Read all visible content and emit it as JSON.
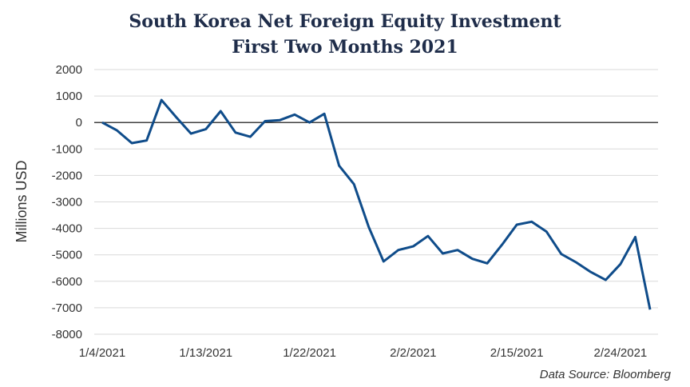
{
  "chart_data": {
    "type": "line",
    "title": "South Korea Net Foreign Equity Investment",
    "subtitle": "First Two Months 2021",
    "xlabel": "",
    "ylabel": "Millions USD",
    "ylim": [
      -8000,
      2000
    ],
    "yticks": [
      2000,
      1000,
      0,
      -1000,
      -2000,
      -3000,
      -4000,
      -5000,
      -6000,
      -7000,
      -8000
    ],
    "ytick_labels": [
      "2000",
      "1000",
      "0",
      "-1000",
      "-2000",
      "-3000",
      "-4000",
      "-5000",
      "-6000",
      "-7000",
      "-8000"
    ],
    "xtick_labels": [
      "1/4/2021",
      "1/13/2021",
      "1/22/2021",
      "2/2/2021",
      "2/15/2021",
      "2/24/2021"
    ],
    "grid": true,
    "legend": "none",
    "series": [
      {
        "color": "#0f4c8a",
        "x": [
          "2021-01-04",
          "2021-01-05",
          "2021-01-06",
          "2021-01-07",
          "2021-01-08",
          "2021-01-11",
          "2021-01-12",
          "2021-01-13",
          "2021-01-14",
          "2021-01-15",
          "2021-01-18",
          "2021-01-19",
          "2021-01-20",
          "2021-01-21",
          "2021-01-22",
          "2021-01-25",
          "2021-01-26",
          "2021-01-27",
          "2021-01-28",
          "2021-01-29",
          "2021-02-01",
          "2021-02-02",
          "2021-02-03",
          "2021-02-04",
          "2021-02-05",
          "2021-02-08",
          "2021-02-09",
          "2021-02-10",
          "2021-02-15",
          "2021-02-16",
          "2021-02-17",
          "2021-02-18",
          "2021-02-19",
          "2021-02-22",
          "2021-02-23",
          "2021-02-24",
          "2021-02-25",
          "2021-02-26"
        ],
        "values": [
          0,
          -300,
          -780,
          -680,
          850,
          200,
          -420,
          -250,
          430,
          -380,
          -540,
          50,
          90,
          300,
          0,
          330,
          -1630,
          -2330,
          -3950,
          -5250,
          -4820,
          -4680,
          -4290,
          -4950,
          -4820,
          -5150,
          -5320,
          -4620,
          -3860,
          -3750,
          -4120,
          -4970,
          -5280,
          -5650,
          -5950,
          -5350,
          -4330,
          -7070
        ]
      }
    ]
  },
  "source_note": "Data Source: Bloomberg"
}
